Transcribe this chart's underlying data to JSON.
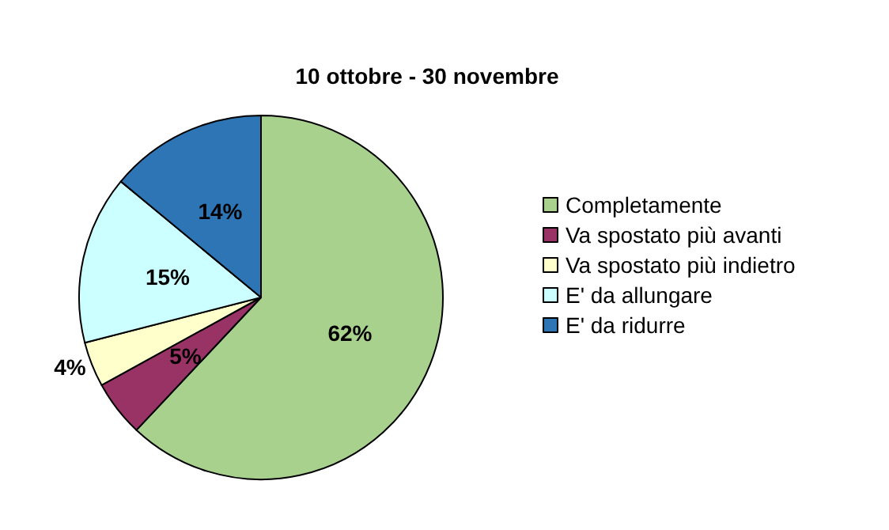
{
  "chart_data": {
    "type": "pie",
    "title": "10 ottobre - 30 novembre",
    "categories": [
      "Completamente",
      "Va spostato più avanti",
      "Va spostato più indietro",
      "E' da allungare",
      "E' da ridurre"
    ],
    "values": [
      62,
      5,
      4,
      15,
      14
    ],
    "colors": [
      "#a9d18e",
      "#993366",
      "#ffffcc",
      "#ccffff",
      "#2e75b6"
    ],
    "value_labels": [
      "62%",
      "5%",
      "4%",
      "15%",
      "14%"
    ],
    "legend": "right"
  }
}
